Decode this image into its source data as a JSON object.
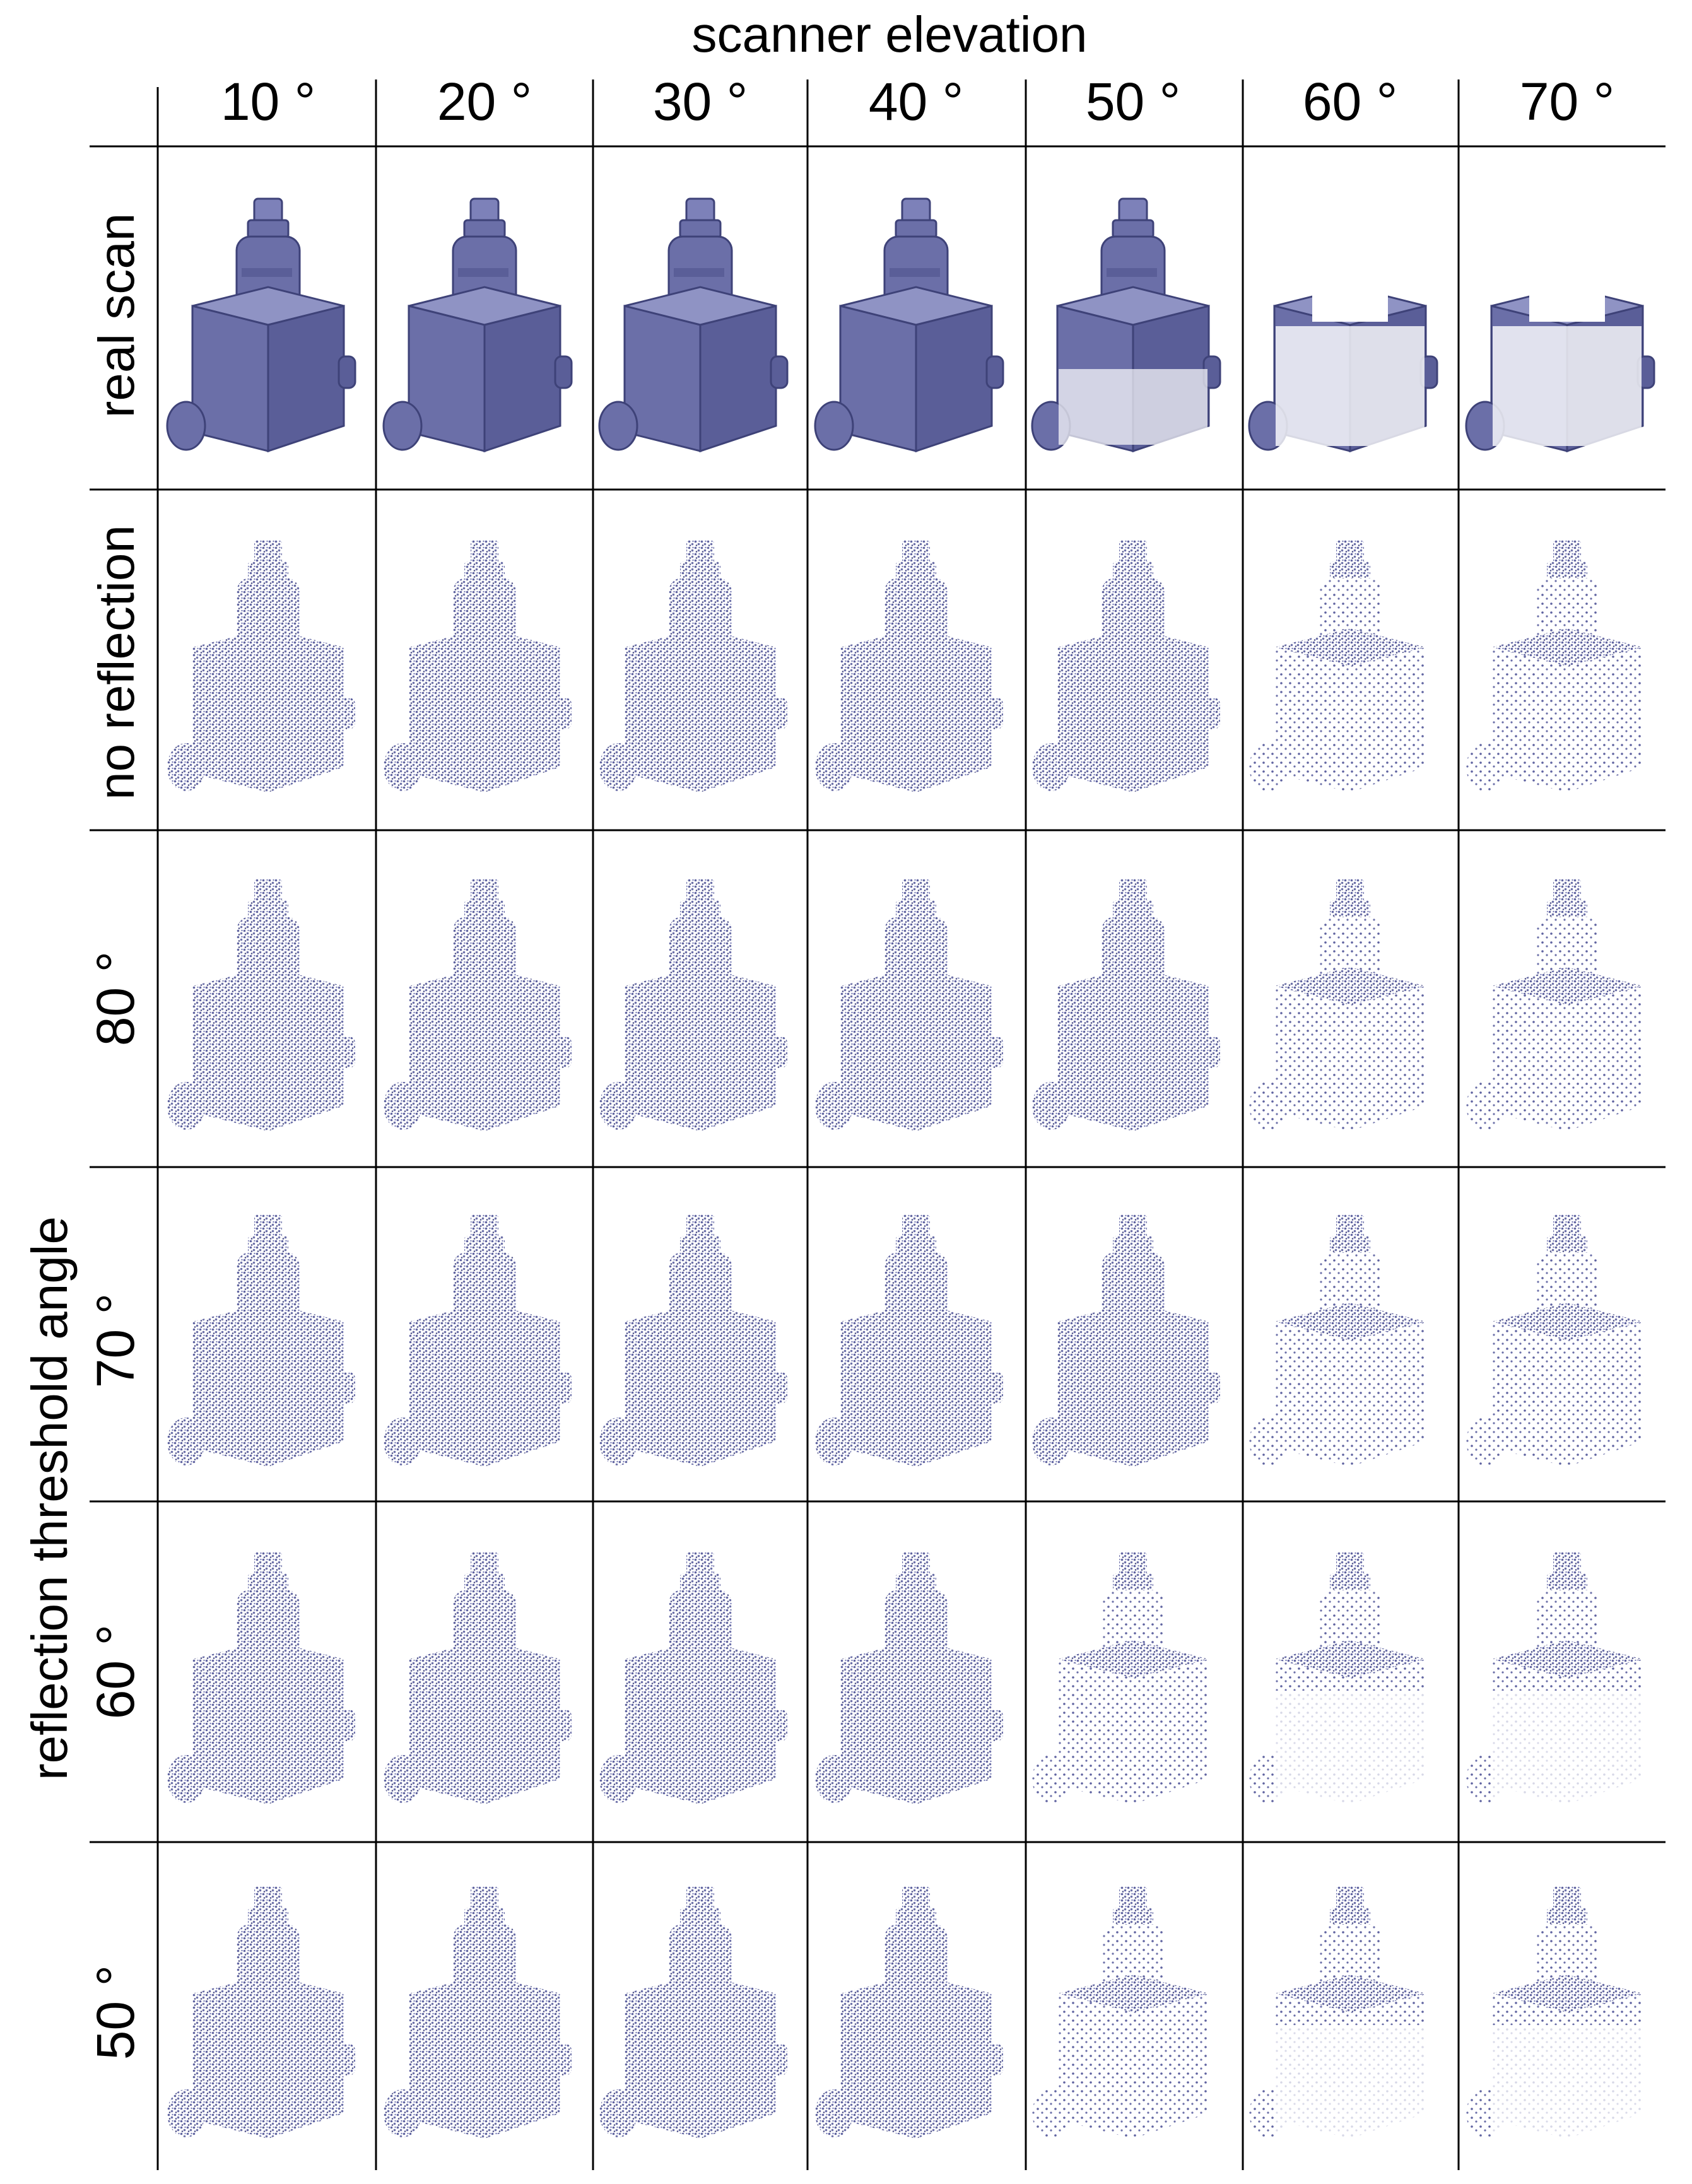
{
  "figure": {
    "title": "scanner elevation",
    "columns": [
      "10 °",
      "20 °",
      "30 °",
      "40 °",
      "50 °",
      "60 °",
      "70 °"
    ],
    "row_group_label": "reflection threshold angle",
    "rows": [
      {
        "label": "real scan",
        "render": "solid-mesh"
      },
      {
        "label": "no reflection",
        "render": "point-cloud"
      },
      {
        "label": "80 °",
        "render": "point-cloud"
      },
      {
        "label": "70 °",
        "render": "point-cloud"
      },
      {
        "label": "60 °",
        "render": "point-cloud"
      },
      {
        "label": "50 °",
        "render": "point-cloud"
      }
    ],
    "colors": {
      "object": "#6b6fa8",
      "object_dark": "#4a4e86",
      "object_light": "#8f93c4",
      "grid": "#000000",
      "background": "#ffffff"
    }
  }
}
